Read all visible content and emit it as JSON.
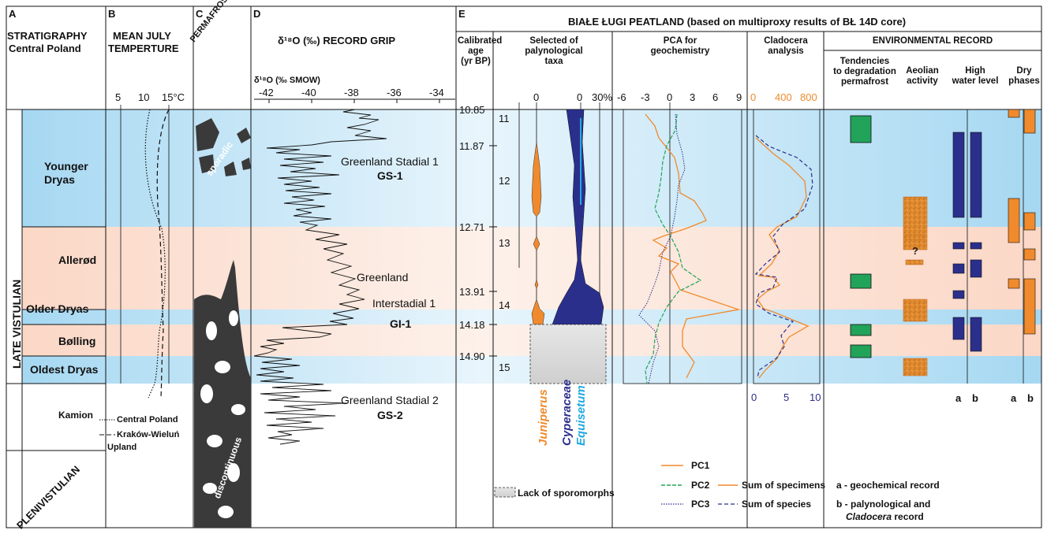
{
  "panels": {
    "A": {
      "letter": "A",
      "title_l1": "STRATIGRAPHY",
      "title_l2": "Central Poland"
    },
    "B": {
      "letter": "B",
      "title_l1": "MEAN JULY",
      "title_l2": "TEMPERTURE",
      "ticks": [
        "5",
        "10",
        "15°C"
      ]
    },
    "C": {
      "letter": "C",
      "title": "PERMAFROST",
      "sporadic": "sporadic",
      "discontinuous": "discontinuous"
    },
    "D": {
      "letter": "D",
      "title": "δ¹⁸O (‰) RECORD GRIP",
      "axis_title": "δ¹⁸O (‰ SMOW)",
      "ticks": [
        "-42",
        "-40",
        "-38",
        "-36",
        "-34"
      ]
    },
    "E": {
      "letter": "E",
      "title": "BIAŁE ŁUGI PEATLAND (based on multiproxy results of BŁ 14D core)"
    }
  },
  "stratigraphy": {
    "late": "LATE VISTULIAN",
    "pleni": "PLENIVISTULIAN",
    "stages": [
      "Younger\nDryas",
      "Allerød",
      "Older Dryas",
      "Bølling",
      "Oldest Dryas",
      "Kamion"
    ]
  },
  "temperature_legend": {
    "line1": "Central Poland",
    "line2": "Kraków-Wieluń",
    "line3": "Upland"
  },
  "grip_labels": {
    "gs1_name": "Greenland Stadial 1",
    "gs1": "GS-1",
    "gi1_name1": "Greenland",
    "gi1_name2": "Interstadial 1",
    "gi1": "GI-1",
    "gs2_name": "Greenland Stadial 2",
    "gs2": "GS-2"
  },
  "column_headers": {
    "age": "Calibrated\nage\n(yr BP)",
    "palyno": "Selected of\npalynological\ntaxa",
    "pca": "PCA for\ngeochemistry",
    "clado": "Cladocera\nanalysis",
    "env": "ENVIRONMENTAL RECORD",
    "env_perm": "Tendencies\nto degradation\npermafrost",
    "env_aeol": "Aeolian\nactivity",
    "env_high": "High\nwater level",
    "env_dry": "Dry\nphases"
  },
  "age_boundaries": [
    "10.85",
    "11.87",
    "12.71",
    "13.91",
    "14.18",
    "14.90"
  ],
  "age_ticks": [
    "11",
    "12",
    "13",
    "14",
    "15"
  ],
  "palyno_ticks": [
    "0",
    "0",
    "30%"
  ],
  "palyno_taxa": {
    "juniperus": "Juniperus",
    "cyperaceae": "Cyperaceae",
    "equisetum": "Equisetum"
  },
  "pca_ticks": [
    "-6",
    "-3",
    "0",
    "3",
    "6",
    "9"
  ],
  "clado_ticks_top": [
    "0",
    "400",
    "800"
  ],
  "clado_ticks_bottom": [
    "0",
    "5",
    "10"
  ],
  "env_ab": {
    "a": "a",
    "b": "b"
  },
  "legend": {
    "lack": "Lack of sporomorphs",
    "pc1": "PC1",
    "pc2": "PC2",
    "pc3": "PC3",
    "sum_spec": "Sum of specimens",
    "sum_species": "Sum of species",
    "a": "a - geochemical record",
    "b1": "b - palynological and",
    "b2": "Cladocera",
    "b3": " record"
  },
  "question": "?",
  "colors": {
    "blue_band": "#a6d8f2",
    "pink_band": "#fbe0d3",
    "orange": "#f08a2c",
    "navy": "#2b2f8c",
    "green": "#22a35a",
    "cyan": "#21a9e0",
    "dark": "#3a3a3a",
    "aeolian": "#e08a2e"
  }
}
